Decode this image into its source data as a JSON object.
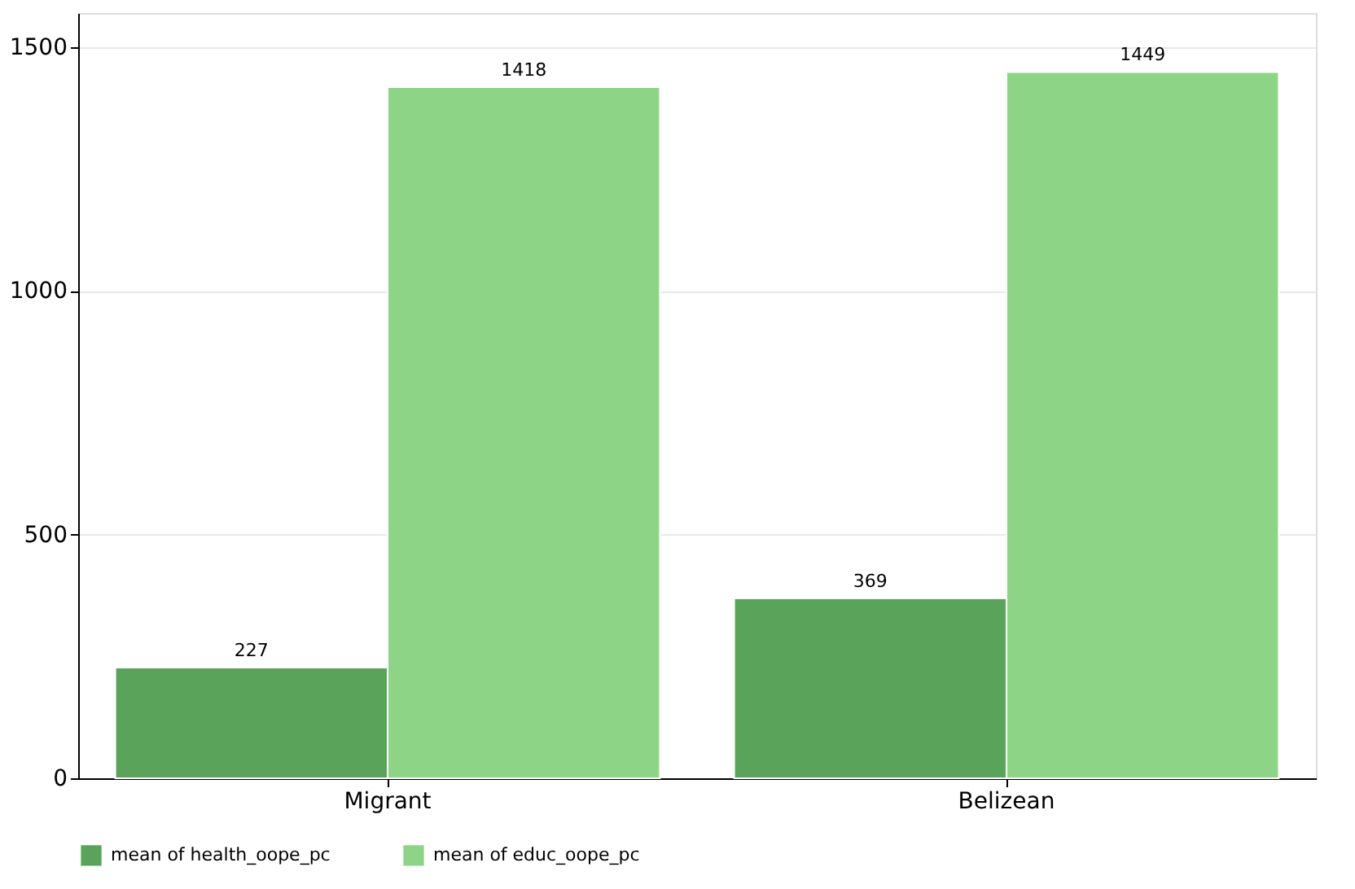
{
  "chart_data": {
    "type": "bar",
    "categories": [
      "Migrant",
      "Belizean"
    ],
    "series": [
      {
        "name": "mean of health_oope_pc",
        "color": "#5aa35a",
        "values": [
          227,
          369
        ]
      },
      {
        "name": "mean of educ_oope_pc",
        "color": "#8dd487",
        "values": [
          1418,
          1449
        ]
      }
    ],
    "ylim": [
      0,
      1570
    ],
    "yticks": [
      0,
      500,
      1000,
      1500
    ],
    "grid": "y",
    "legend": "bottom",
    "data_labels": true
  }
}
